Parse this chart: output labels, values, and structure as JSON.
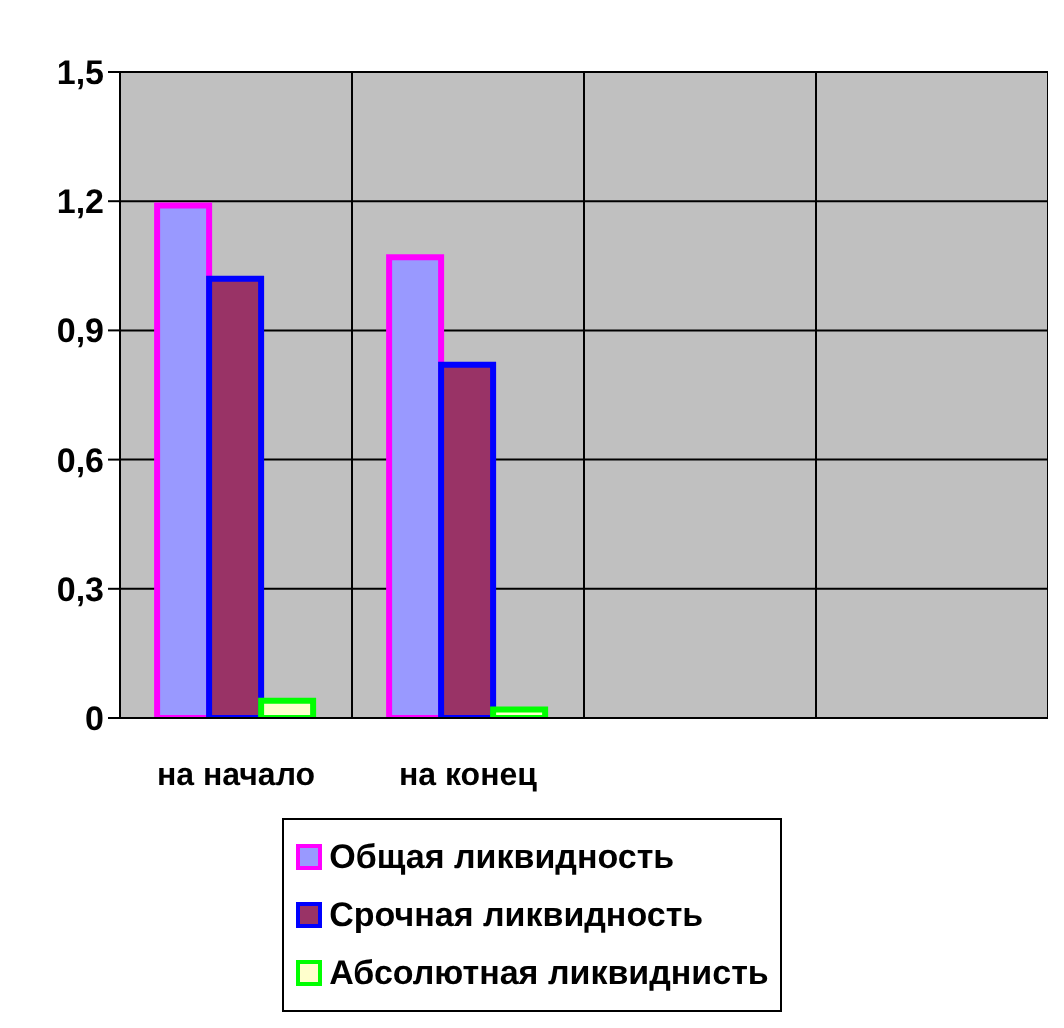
{
  "chart_data": {
    "type": "bar",
    "categories": [
      "на начало",
      "на конец",
      null,
      null
    ],
    "series": [
      {
        "name": "Общая ликвидность",
        "color": "#9999ff",
        "values": [
          1.19,
          1.07,
          null,
          null
        ]
      },
      {
        "name": "Срочная ликвидность",
        "color": "#993366",
        "values": [
          1.02,
          0.82,
          null,
          null
        ]
      },
      {
        "name": "Абсолютная ликвиднисть",
        "color": "#ffffcc",
        "values": [
          0.04,
          0.02,
          null,
          null
        ]
      }
    ],
    "ylim": [
      0,
      1.5
    ],
    "yticks": [
      0,
      {
        "value": 0.3,
        "label": "0,3"
      },
      {
        "value": 0.6,
        "label": "0,6"
      },
      {
        "value": 0.9,
        "label": "0,9"
      },
      {
        "value": 1.2,
        "label": "1,2"
      },
      {
        "value": 1.5,
        "label": "1,5"
      }
    ],
    "grid": true,
    "legend": "bottom"
  }
}
